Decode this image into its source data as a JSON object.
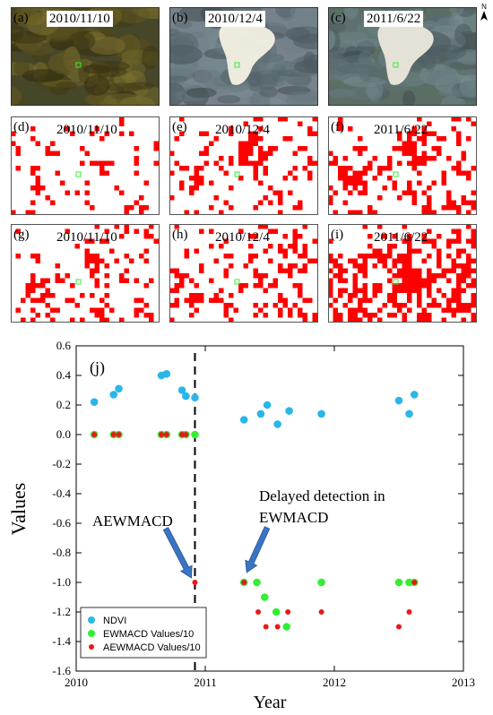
{
  "panels": [
    {
      "id": "a",
      "label": "(a)",
      "date": "2010/11/10",
      "kind": "image",
      "seed": 11
    },
    {
      "id": "b",
      "label": "(b)",
      "date": "2010/12/4",
      "kind": "image",
      "seed": 23
    },
    {
      "id": "c",
      "label": "(c)",
      "date": "2011/6/22",
      "kind": "image",
      "seed": 37
    },
    {
      "id": "d",
      "label": "(d)",
      "date": "2010/11/10",
      "kind": "map",
      "seed": 101
    },
    {
      "id": "e",
      "label": "(e)",
      "date": "2010/12/4",
      "kind": "map",
      "seed": 113
    },
    {
      "id": "f",
      "label": "(f)",
      "date": "2011/6/22",
      "kind": "map",
      "seed": 127
    },
    {
      "id": "g",
      "label": "(g)",
      "date": "2010/11/10",
      "kind": "map",
      "seed": 131
    },
    {
      "id": "h",
      "label": "(h)",
      "date": "2010/12/4",
      "kind": "map",
      "seed": 149
    },
    {
      "id": "i",
      "label": "(i)",
      "date": "2011/6/22",
      "kind": "map",
      "seed": 157
    }
  ],
  "north_arrow": "N",
  "colors": {
    "ndvi": "#2bb6ea",
    "ewmacd": "#33ee33",
    "aewmacd": "#e81919",
    "change": "#ff0000",
    "marker": "#33ee33"
  },
  "chart_data": {
    "type": "scatter",
    "title": "",
    "panel_label": "(j)",
    "xlabel": "Year",
    "ylabel": "Values",
    "xlim": [
      2010,
      2013
    ],
    "ylim": [
      -1.6,
      0.6
    ],
    "xticks": [
      "2010",
      "2011",
      "2012",
      "2013"
    ],
    "yticks": [
      "0.6",
      "0.4",
      "0.2",
      "0.0",
      "-0.2",
      "-0.4",
      "-0.6",
      "-0.8",
      "-1.0",
      "-1.2",
      "-1.4",
      "-1.6"
    ],
    "grid": false,
    "legend_position": "bottom-left",
    "vline_x": 2010.92,
    "series": [
      {
        "name": "NDVI",
        "color": "#2bb6ea",
        "r": 4.3,
        "x": [
          2010.14,
          2010.29,
          2010.33,
          2010.66,
          2010.7,
          2010.82,
          2010.85,
          2010.92,
          2011.3,
          2011.43,
          2011.48,
          2011.56,
          2011.65,
          2011.9,
          2012.5,
          2012.58,
          2012.62
        ],
        "y": [
          0.22,
          0.27,
          0.31,
          0.4,
          0.41,
          0.3,
          0.26,
          0.25,
          0.1,
          0.14,
          0.2,
          0.07,
          0.16,
          0.14,
          0.23,
          0.14,
          0.27
        ]
      },
      {
        "name": "EWMACD Values/10",
        "color": "#33ee33",
        "r": 4.3,
        "x": [
          2010.14,
          2010.29,
          2010.33,
          2010.66,
          2010.7,
          2010.82,
          2010.85,
          2010.92,
          2011.3,
          2011.4,
          2011.46,
          2011.55,
          2011.63,
          2011.9,
          2012.5,
          2012.58,
          2012.62
        ],
        "y": [
          0.0,
          0.0,
          0.0,
          0.0,
          0.0,
          0.0,
          0.0,
          0.0,
          -1.0,
          -1.0,
          -1.1,
          -1.2,
          -1.3,
          -1.0,
          -1.0,
          -1.0,
          -1.0
        ]
      },
      {
        "name": "AEWMACD Values/10",
        "color": "#e81919",
        "r": 3.0,
        "x": [
          2010.14,
          2010.29,
          2010.33,
          2010.66,
          2010.7,
          2010.82,
          2010.85,
          2010.92,
          2011.3,
          2011.41,
          2011.47,
          2011.56,
          2011.64,
          2011.9,
          2012.5,
          2012.58,
          2012.62
        ],
        "y": [
          0.0,
          0.0,
          0.0,
          0.0,
          0.0,
          0.0,
          0.0,
          -1.0,
          -1.0,
          -1.2,
          -1.3,
          -1.3,
          -1.2,
          -1.2,
          -1.3,
          -1.2,
          -1.0
        ]
      }
    ],
    "annotations": [
      {
        "text": "AEWMACD",
        "arrow_to_x": 2010.92,
        "arrow_to_y": -1.0
      },
      {
        "text": "Delayed detection in",
        "text2": "EWMACD",
        "arrow_to_x": 2011.3,
        "arrow_to_y": -0.97
      }
    ]
  }
}
